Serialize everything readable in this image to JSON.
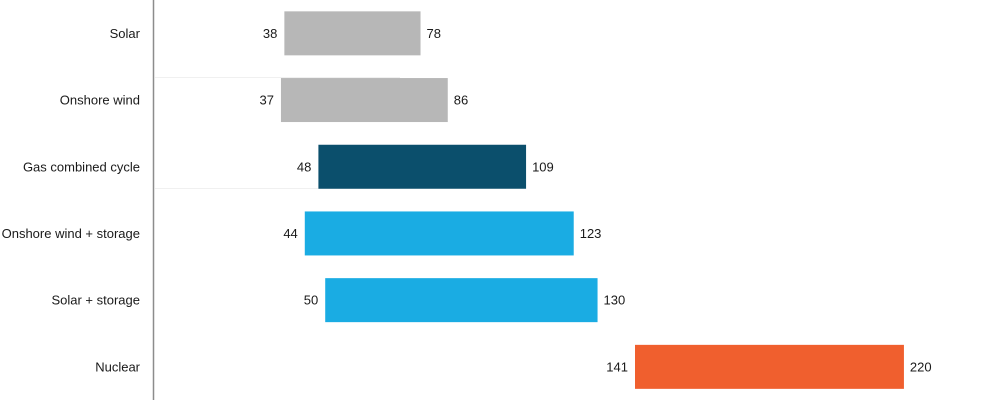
{
  "chart_data": {
    "type": "bar",
    "orientation": "horizontal",
    "bar_style": "floating-range",
    "categories": [
      "Solar",
      "Onshore wind",
      "Gas combined cycle",
      "Onshore wind + storage",
      "Solar + storage",
      "Nuclear"
    ],
    "series": [
      {
        "low": [
          38,
          37,
          48,
          44,
          50,
          141
        ],
        "high": [
          78,
          86,
          109,
          123,
          130,
          220
        ]
      }
    ],
    "bar_colors": [
      "#b7b7b7",
      "#b7b7b7",
      "#0b4f6c",
      "#1aace3",
      "#1aace3",
      "#f05f2e"
    ],
    "xlim": [
      0,
      235
    ],
    "grid": false,
    "title": "",
    "xlabel": "",
    "ylabel": ""
  }
}
